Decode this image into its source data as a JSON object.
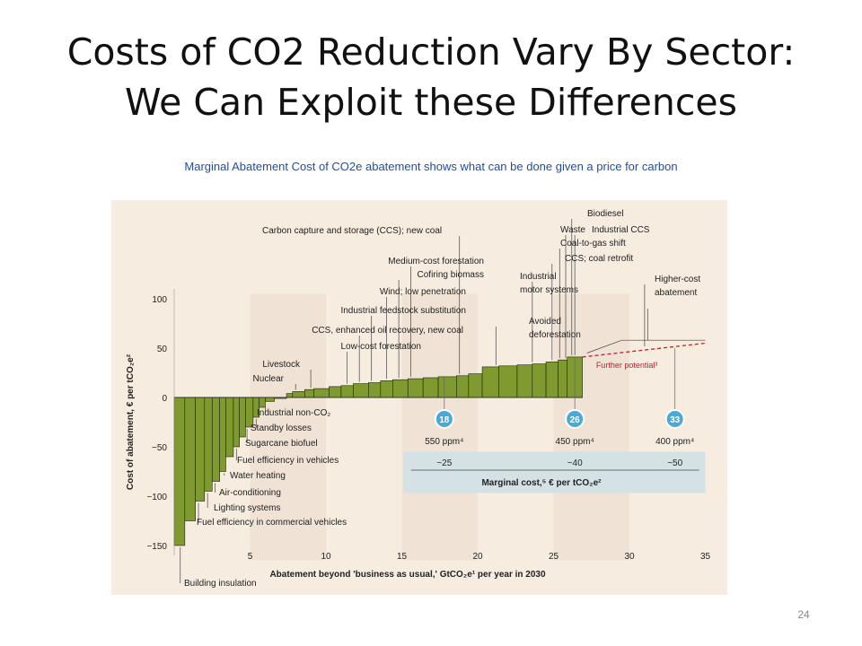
{
  "slide": {
    "title_line1": "Costs of CO2 Reduction Vary By Sector:",
    "title_line2": "We Can Exploit these Differences",
    "subtitle": "Marginal Abatement Cost of CO2e abatement shows what can be done given a price for carbon",
    "page_number": "24"
  },
  "colors": {
    "bar_fill": "#7f9a2e",
    "bar_stroke": "#1c2410",
    "curve_line": "#c0202a",
    "chart_bg": "#f6ece0",
    "chart_band": "#ecdccb",
    "band_highlight": "#d4e2e6",
    "marker_circle": "#4ba9d6"
  },
  "chart_data": {
    "type": "bar",
    "title": "",
    "xlabel": "Abatement beyond 'business as usual,' GtCO₂e¹ per year in 2030",
    "ylabel": "Cost of abatement, € per tCO₂e²",
    "xlim": [
      0,
      35
    ],
    "ylim": [
      -165,
      115
    ],
    "x_ticks": [
      "5",
      "10",
      "15",
      "20",
      "25",
      "30",
      "35"
    ],
    "y_ticks": [
      "100",
      "50",
      "0",
      "−50",
      "−100",
      "−150"
    ],
    "grid": false,
    "segments": [
      {
        "x0": 0.0,
        "x1": 0.7,
        "cost": -150
      },
      {
        "x0": 0.7,
        "x1": 1.4,
        "cost": -125
      },
      {
        "x0": 1.4,
        "x1": 2.0,
        "cost": -105
      },
      {
        "x0": 2.0,
        "x1": 2.5,
        "cost": -95
      },
      {
        "x0": 2.5,
        "x1": 3.0,
        "cost": -85
      },
      {
        "x0": 3.0,
        "x1": 3.4,
        "cost": -75
      },
      {
        "x0": 3.4,
        "x1": 3.9,
        "cost": -60
      },
      {
        "x0": 3.9,
        "x1": 4.3,
        "cost": -50
      },
      {
        "x0": 4.3,
        "x1": 4.7,
        "cost": -40
      },
      {
        "x0": 4.7,
        "x1": 5.2,
        "cost": -30
      },
      {
        "x0": 5.2,
        "x1": 5.6,
        "cost": -20
      },
      {
        "x0": 5.6,
        "x1": 6.0,
        "cost": -10
      },
      {
        "x0": 6.0,
        "x1": 6.6,
        "cost": -4
      },
      {
        "x0": 6.6,
        "x1": 7.4,
        "cost": -1
      },
      {
        "x0": 7.4,
        "x1": 7.8,
        "cost": 4
      },
      {
        "x0": 7.8,
        "x1": 8.6,
        "cost": 6
      },
      {
        "x0": 8.6,
        "x1": 9.2,
        "cost": 8
      },
      {
        "x0": 9.2,
        "x1": 10.2,
        "cost": 9
      },
      {
        "x0": 10.2,
        "x1": 11.0,
        "cost": 11
      },
      {
        "x0": 11.0,
        "x1": 11.8,
        "cost": 12
      },
      {
        "x0": 11.8,
        "x1": 12.8,
        "cost": 14
      },
      {
        "x0": 12.8,
        "x1": 13.6,
        "cost": 15
      },
      {
        "x0": 13.6,
        "x1": 14.4,
        "cost": 17
      },
      {
        "x0": 14.4,
        "x1": 15.4,
        "cost": 18
      },
      {
        "x0": 15.4,
        "x1": 16.4,
        "cost": 19
      },
      {
        "x0": 16.4,
        "x1": 17.4,
        "cost": 20
      },
      {
        "x0": 17.4,
        "x1": 18.6,
        "cost": 21
      },
      {
        "x0": 18.6,
        "x1": 19.4,
        "cost": 22
      },
      {
        "x0": 19.4,
        "x1": 20.3,
        "cost": 24
      },
      {
        "x0": 20.3,
        "x1": 21.4,
        "cost": 31
      },
      {
        "x0": 21.4,
        "x1": 22.6,
        "cost": 32
      },
      {
        "x0": 22.6,
        "x1": 23.6,
        "cost": 33
      },
      {
        "x0": 23.6,
        "x1": 24.5,
        "cost": 34
      },
      {
        "x0": 24.5,
        "x1": 25.3,
        "cost": 36
      },
      {
        "x0": 25.3,
        "x1": 25.9,
        "cost": 38
      },
      {
        "x0": 25.9,
        "x1": 26.9,
        "cost": 41
      }
    ],
    "curve": {
      "solid_end": [
        26.9,
        41
      ],
      "dashed_to": [
        35,
        55
      ]
    },
    "further_potential_label": "Further potential³",
    "annotations_above": [
      {
        "text": "Carbon capture and storage (CCS); new coal",
        "x": 18.8
      },
      {
        "text": "Biodiesel",
        "x": 26.2
      },
      {
        "text": "Industrial CCS",
        "x": 26.4
      },
      {
        "text": "Waste",
        "x": 25.8
      },
      {
        "text": "Coal-to-gas shift",
        "x": 25.4
      },
      {
        "text": "CCS; coal retrofit",
        "x": 24.9
      },
      {
        "text": "Industrial",
        "x": 23.6
      },
      {
        "text": "motor systems",
        "x": 23.6
      },
      {
        "text": "Medium-cost forestation",
        "x": 15.6
      },
      {
        "text": "Cofiring biomass",
        "x": 14.8
      },
      {
        "text": "Wind; low penetration",
        "x": 14.0
      },
      {
        "text": "Industrial feedstock substitution",
        "x": 13.0
      },
      {
        "text": "CCS, enhanced oil recovery, new coal",
        "x": 12.2
      },
      {
        "text": "Low-cost forestation",
        "x": 11.4
      },
      {
        "text": "Livestock",
        "x": 9.0
      },
      {
        "text": "Nuclear",
        "x": 8.0
      },
      {
        "text": "Avoided",
        "x": 21.2
      },
      {
        "text": "deforestation",
        "x": 21.2
      },
      {
        "text": "Higher-cost",
        "x": 31.0
      },
      {
        "text": "abatement",
        "x": 31.0
      }
    ],
    "annotations_below": [
      {
        "text": "Industrial non-CO₂",
        "x": 6.0
      },
      {
        "text": "Standby losses",
        "x": 5.4
      },
      {
        "text": "Sugarcane biofuel",
        "x": 4.8
      },
      {
        "text": "Fuel efficiency in vehicles",
        "x": 4.1
      },
      {
        "text": "Water heating",
        "x": 3.3
      },
      {
        "text": "Air-conditioning",
        "x": 2.7
      },
      {
        "text": "Lighting systems",
        "x": 2.2
      },
      {
        "text": "Fuel efficiency in commercial vehicles",
        "x": 1.6
      },
      {
        "text": "Building insulation",
        "x": 0.4
      }
    ],
    "scenarios": [
      {
        "marker": "18",
        "x": 17.8,
        "ppm": "550 ppm⁴",
        "marginal_cost": "~25"
      },
      {
        "marker": "26",
        "x": 26.4,
        "ppm": "450 ppm⁴",
        "marginal_cost": "~40"
      },
      {
        "marker": "33",
        "x": 33.0,
        "ppm": "400 ppm⁴",
        "marginal_cost": "~50"
      }
    ],
    "marginal_cost_label": "Marginal cost,⁵ € per tCO₂e²"
  }
}
